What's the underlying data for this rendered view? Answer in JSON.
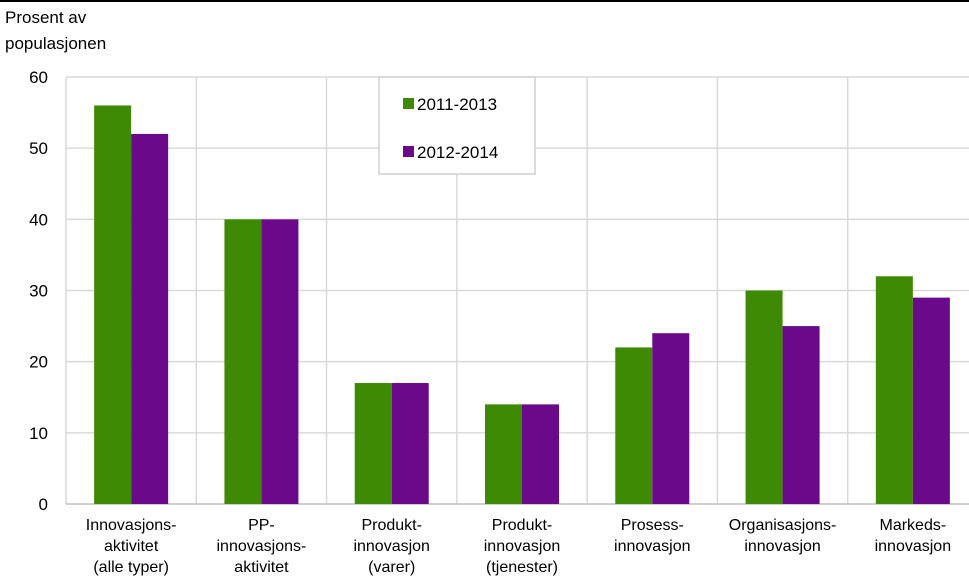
{
  "chart_data": {
    "type": "bar",
    "title": "",
    "ylabel": [
      "Prosent av",
      "populasjonen"
    ],
    "xlabel": "",
    "ylim": [
      0,
      60
    ],
    "yticks": [
      0,
      10,
      20,
      30,
      40,
      50,
      60
    ],
    "grid": true,
    "legend_position": "top-center",
    "categories": [
      [
        "Innovasjons-",
        "aktivitet",
        "(alle typer)"
      ],
      [
        "PP-",
        "innovasjons-",
        "aktivitet"
      ],
      [
        "Produkt-",
        "innovasjon",
        "(varer)"
      ],
      [
        "Produkt-",
        "innovasjon",
        "(tjenester)"
      ],
      [
        "Prosess-",
        "innovasjon"
      ],
      [
        "Organisasjons-",
        "innovasjon"
      ],
      [
        "Markeds-",
        "innovasjon"
      ]
    ],
    "series": [
      {
        "name": "2011-2013",
        "color": "#3f8a04",
        "values": [
          56,
          40,
          17,
          14,
          22,
          30,
          32
        ]
      },
      {
        "name": "2012-2014",
        "color": "#6a0a8a",
        "values": [
          52,
          40,
          17,
          14,
          24,
          25,
          29
        ]
      }
    ]
  }
}
